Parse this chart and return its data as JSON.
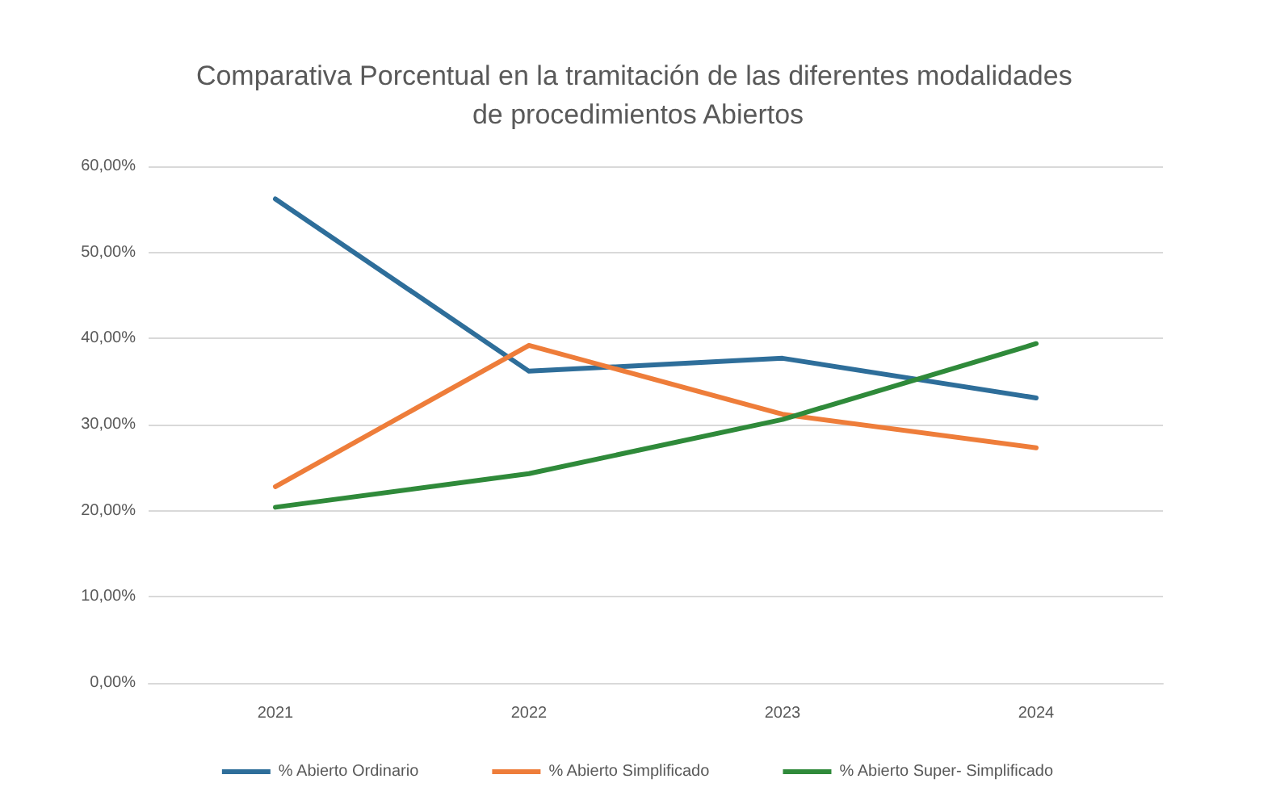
{
  "chart_data": {
    "type": "line",
    "title": "Comparativa Porcentual en la tramitación de las diferentes modalidades de procedimientos Abiertos",
    "categories": [
      "2021",
      "2022",
      "2023",
      "2024"
    ],
    "series": [
      {
        "name": "% Abierto Ordinario",
        "color": "#2e6e9a",
        "values": [
          56.2,
          36.2,
          37.7,
          33.1
        ]
      },
      {
        "name": "% Abierto Simplificado",
        "color": "#ee7d3a",
        "values": [
          22.8,
          39.2,
          31.2,
          27.3
        ]
      },
      {
        "name": "% Abierto Super- Simplificado",
        "color": "#2f8a3a",
        "values": [
          20.4,
          24.3,
          30.6,
          39.4
        ]
      }
    ],
    "ylim": [
      0,
      60
    ],
    "yticks": [
      {
        "value": 0,
        "label": "0,00%"
      },
      {
        "value": 10,
        "label": "10,00%"
      },
      {
        "value": 20,
        "label": "20,00%"
      },
      {
        "value": 30,
        "label": "30,00%"
      },
      {
        "value": 40,
        "label": "40,00%"
      },
      {
        "value": 50,
        "label": "50,00%"
      },
      {
        "value": 60,
        "label": "60,00%"
      }
    ],
    "grid": "y",
    "legend": "bottom",
    "marker": "none",
    "line_style": "solid"
  }
}
